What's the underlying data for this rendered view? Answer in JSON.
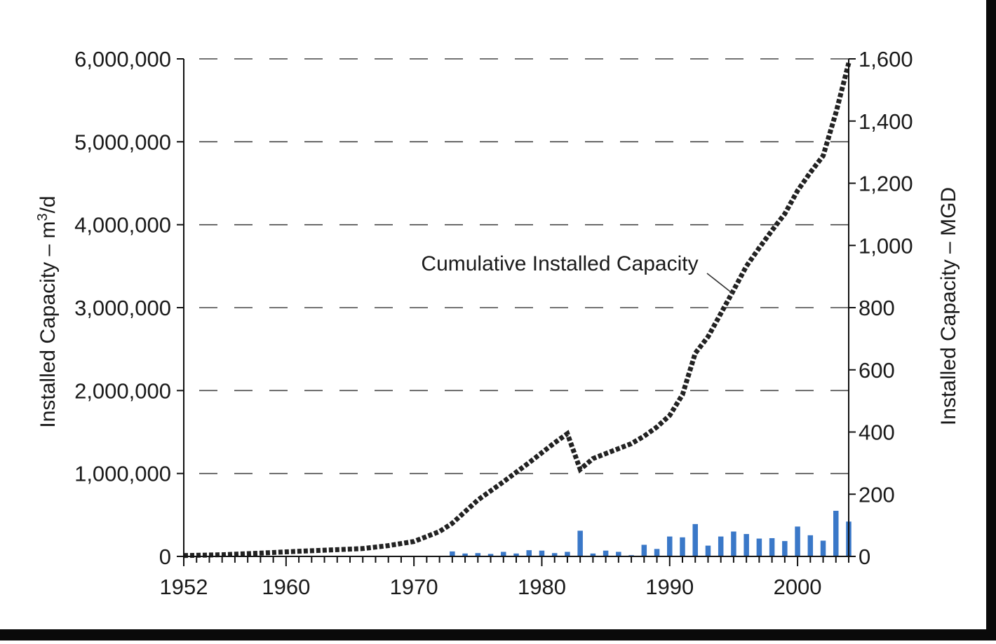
{
  "chart_data": {
    "type": "bar+line",
    "x_ticks": [
      "1952",
      "1960",
      "1970",
      "1980",
      "1990",
      "2000"
    ],
    "xlim": [
      1952,
      2004
    ],
    "y_left": {
      "label_prefix": "Installed Capacity – m",
      "label_sup": "3",
      "label_suffix": "/d",
      "ticks": [
        "6,000,000",
        "5,000,000",
        "4,000,000",
        "3,000,000",
        "2,000,000",
        "1,000,000",
        "0"
      ],
      "ylim": [
        0,
        6000000
      ]
    },
    "y_right": {
      "label": "Installed Capacity – MGD",
      "ticks": [
        "1,600",
        "1,400",
        "1,200",
        "1,000",
        "800",
        "600",
        "400",
        "200",
        "0"
      ],
      "ylim": [
        0,
        1600
      ]
    },
    "grid": "dashed horizontal",
    "annotation": "Cumulative Installed Capacity",
    "colors": {
      "bars": "#3a78c8",
      "line": "#222222",
      "axis": "#111111"
    },
    "line_series": {
      "x": [
        1952,
        1955,
        1958,
        1960,
        1963,
        1966,
        1968,
        1970,
        1972,
        1973,
        1975,
        1977,
        1979,
        1981,
        1982,
        1983,
        1984,
        1986,
        1987,
        1988,
        1989,
        1990,
        1991,
        1992,
        1993,
        1994,
        1995,
        1996,
        1997,
        1998,
        1999,
        2000,
        2001,
        2002,
        2003,
        2004
      ],
      "y": [
        10000,
        20000,
        40000,
        55000,
        75000,
        95000,
        130000,
        180000,
        300000,
        400000,
        680000,
        900000,
        1130000,
        1370000,
        1480000,
        1050000,
        1180000,
        1300000,
        1360000,
        1450000,
        1560000,
        1700000,
        1950000,
        2450000,
        2650000,
        2930000,
        3210000,
        3500000,
        3720000,
        3930000,
        4130000,
        4410000,
        4630000,
        4830000,
        5350000,
        5950000
      ]
    },
    "bar_series": {
      "x": [
        1973,
        1974,
        1975,
        1976,
        1977,
        1978,
        1979,
        1980,
        1981,
        1982,
        1983,
        1984,
        1985,
        1986,
        1987,
        1988,
        1989,
        1990,
        1991,
        1992,
        1993,
        1994,
        1995,
        1996,
        1997,
        1998,
        1999,
        2000,
        2001,
        2002,
        2003,
        2004
      ],
      "y": [
        60000,
        35000,
        40000,
        30000,
        55000,
        35000,
        75000,
        70000,
        40000,
        55000,
        310000,
        35000,
        70000,
        55000,
        15000,
        140000,
        90000,
        240000,
        230000,
        390000,
        130000,
        240000,
        300000,
        270000,
        215000,
        220000,
        185000,
        360000,
        255000,
        190000,
        550000,
        420000
      ]
    }
  }
}
